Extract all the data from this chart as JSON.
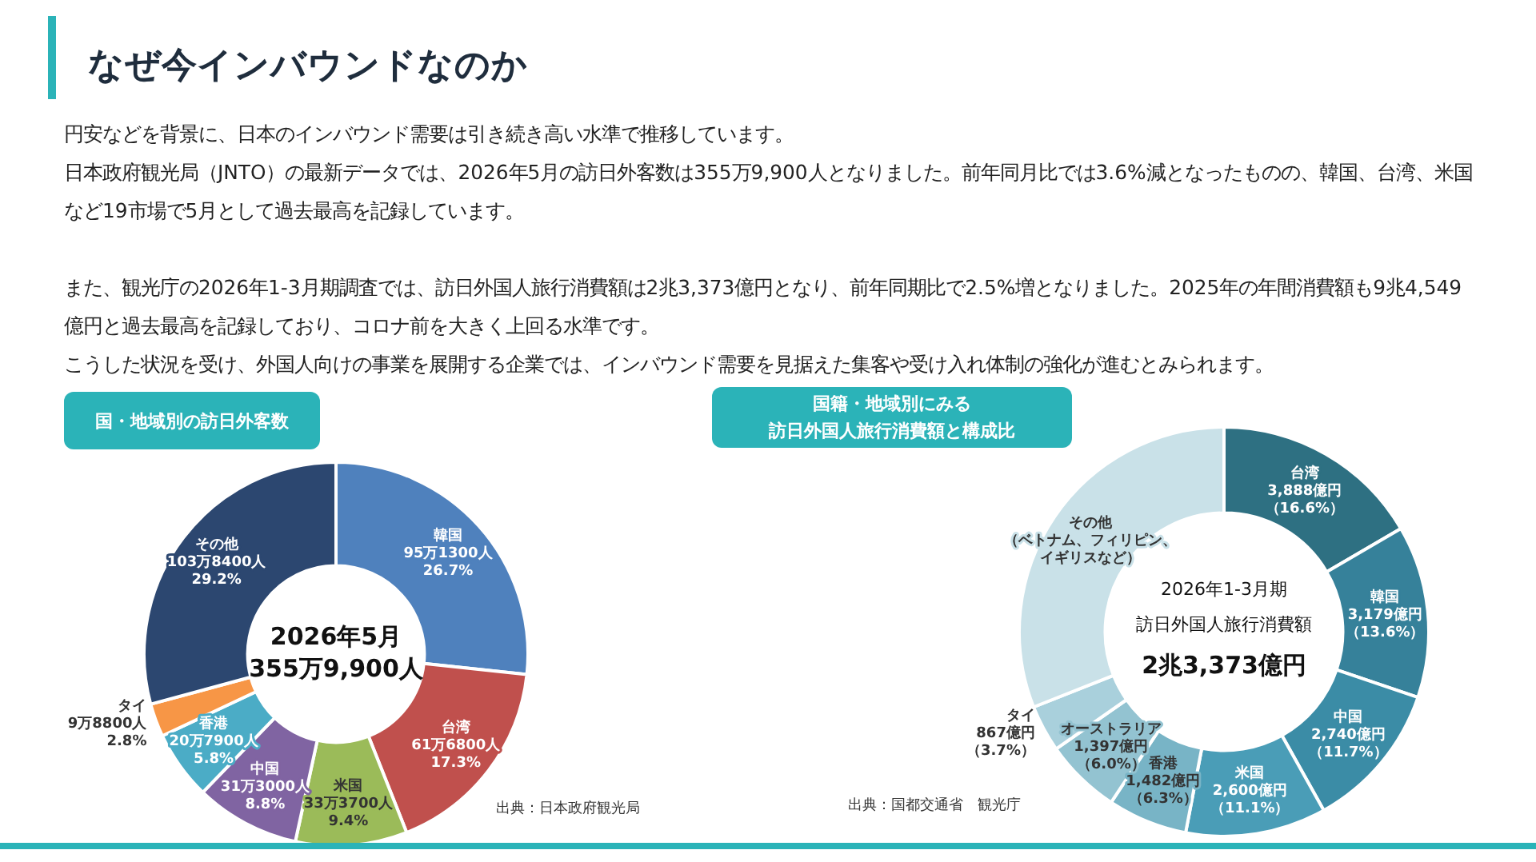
{
  "chart_data": [
    {
      "type": "other",
      "title": "なぜ今インバウンドなのか",
      "annotations": [
        "円安などを背景に、日本のインバウンド需要は引き続き高い水準で推移しています。",
        "日本政府観光局（JNTO）の最新データでは、2026年5月の訪日外客数は355万9,900人となりました。前年同月比では3.6%減となったものの、韓国、台湾、米国など19市場で5月として過去最高を記録しています。",
        "また、観光庁の2026年1-3月期調査では、訪日外国人旅行消費額は2兆3,373億円となり、前年同期比で2.5%増となりました。2025年の年間消費額も9兆4,549億円と過去最高を記録しており、コロナ前を大きく上回る水準です。",
        "こうした状況を受け、外国人向けの事業を展開する企業では、インバウンド需要を見据えた集客や受け入れ体制の強化が進むとみられます。"
      ]
    },
    {
      "type": "donut",
      "title": "国・地域別の訪日外客数",
      "categories": [
        "韓国",
        "台湾",
        "米国",
        "中国",
        "香港",
        "タイ",
        "その他"
      ],
      "values": [
        26.7,
        17.3,
        9.4,
        8.8,
        5.8,
        2.8,
        29.2
      ],
      "value_labels": [
        "95万1300人\n26.7%",
        "61万6800人\n17.3%",
        "33万3700人\n9.4%",
        "31万3000人\n8.8%",
        "20万7900人\n5.8%",
        "9万8800人\n2.8%",
        "103万8400人\n29.2%"
      ],
      "colors": [
        "#4f81bd",
        "#c0504d",
        "#9bbb59",
        "#8064a2",
        "#4bacc6",
        "#f79646",
        "#2c4770"
      ],
      "annotations": [
        "2026年5月",
        "355万9,900人",
        "出典：日本政府観光局"
      ]
    },
    {
      "type": "donut",
      "title": "国籍・地域別にみる訪日外国人旅行消費額と構成比",
      "categories": [
        "台湾",
        "韓国",
        "中国",
        "米国",
        "香港",
        "オーストラリア",
        "タイ",
        "その他（ベトナム、フィリピン、イギリスなど）"
      ],
      "values": [
        16.6,
        13.6,
        11.7,
        11.1,
        6.3,
        6.0,
        3.7,
        31.0
      ],
      "value_labels": [
        "3,888億円（16.6%）",
        "3,179億円（13.6%）",
        "2,740億円（11.7%）",
        "2,600億円（11.1%）",
        "1,482億円（6.3%）",
        "1,397億円（6.0%）",
        "867億円（3.7%）",
        null
      ],
      "colors": [
        "#2e7082",
        "#36819a",
        "#3b8ca6",
        "#4a9db7",
        "#78b4c6",
        "#93c3d1",
        "#a9d0dc",
        "#c9e1e8"
      ],
      "annotations": [
        "2026年1-3月期",
        "訪日外国人旅行消費額",
        "2兆3,373億円",
        "出典：国都交通省　観光庁"
      ]
    }
  ]
}
